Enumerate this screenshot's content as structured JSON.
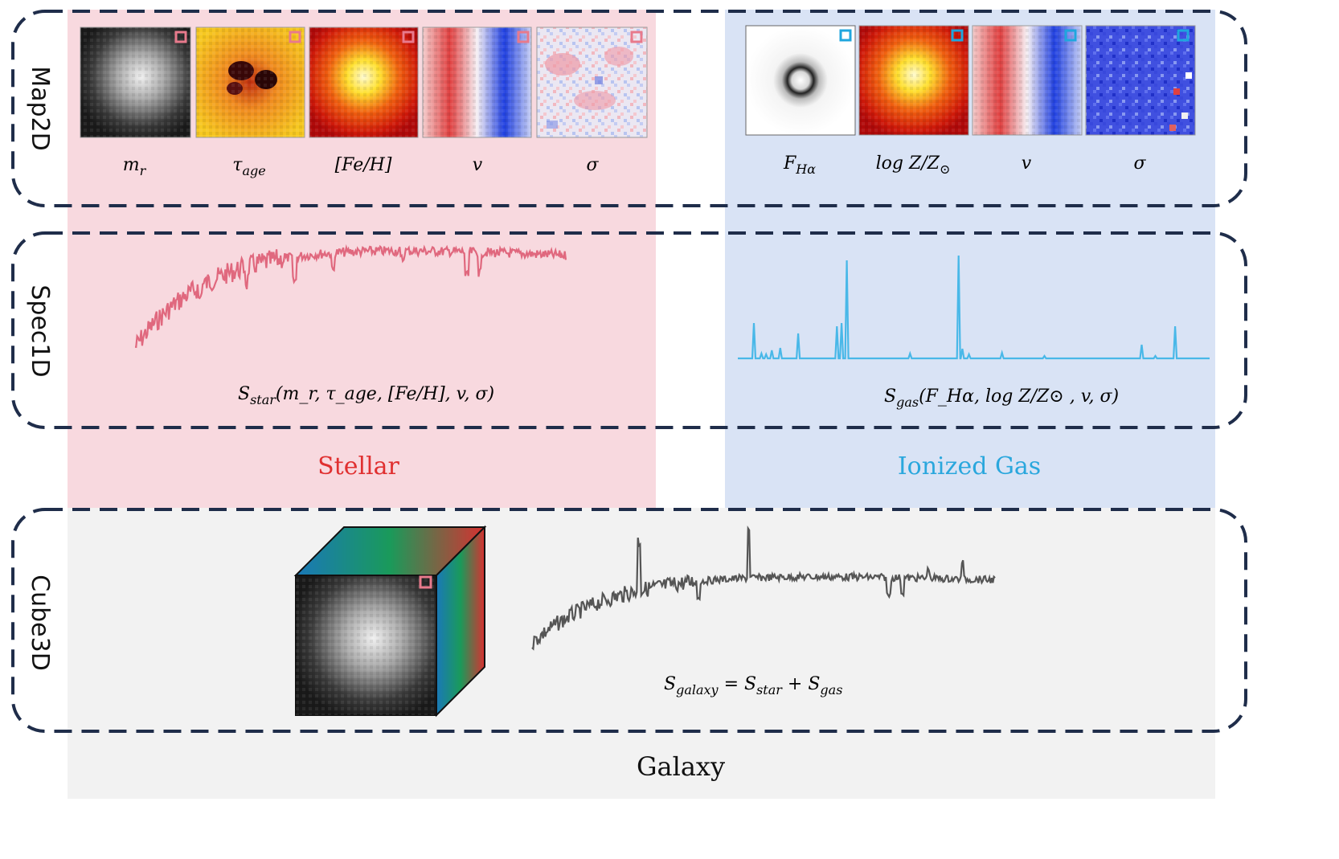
{
  "rows": {
    "map": "Map2D",
    "spec": "Spec1D",
    "cube": "Cube3D"
  },
  "stellar": {
    "title": "Stellar",
    "title_color": "#e03030",
    "panel_color": "#f8d9df",
    "maps": [
      {
        "name": "m-r",
        "main": "m",
        "sub": "r",
        "colormap": "gray"
      },
      {
        "name": "tau-age",
        "main": "τ",
        "sub": "age",
        "colormap": "hot-dark"
      },
      {
        "name": "fe-h",
        "main": "[Fe/H]",
        "sub": "",
        "colormap": "hot"
      },
      {
        "name": "v",
        "main": "v",
        "sub": "",
        "colormap": "bwr-left-red"
      },
      {
        "name": "sigma",
        "main": "σ",
        "sub": "",
        "colormap": "bwr-noise"
      }
    ],
    "spectrum_color": "#e0687e",
    "formula": {
      "main": "S",
      "sub": "star",
      "args": "(m_r, τ_age, [Fe/H], v, σ)"
    }
  },
  "gas": {
    "title": "Ionized Gas",
    "title_color": "#2aa7dd",
    "panel_color": "#d9e3f5",
    "maps": [
      {
        "name": "f-halpha",
        "main": "F",
        "sub": "Hα",
        "colormap": "ring-gray"
      },
      {
        "name": "log-z",
        "main": "log Z/Z",
        "sub": "⊙",
        "colormap": "hot"
      },
      {
        "name": "v",
        "main": "v",
        "sub": "",
        "colormap": "bwr-left-red"
      },
      {
        "name": "sigma",
        "main": "σ",
        "sub": "",
        "colormap": "blue-noise"
      }
    ],
    "spectrum_color": "#49b8e8",
    "formula": {
      "main": "S",
      "sub": "gas",
      "args": "(F_Hα, log Z/Z⊙ , v, σ)"
    }
  },
  "galaxy": {
    "title": "Galaxy",
    "panel_color": "#f2f2f2",
    "spectrum_color": "#555555",
    "formula": {
      "lhs_sub": "galaxy",
      "rhs1_sub": "star",
      "rhs2_sub": "gas"
    }
  },
  "marker_colors": {
    "stellar": "#e87a8c",
    "gas": "#1fa6de"
  },
  "frame_color": "#1f2d4a"
}
